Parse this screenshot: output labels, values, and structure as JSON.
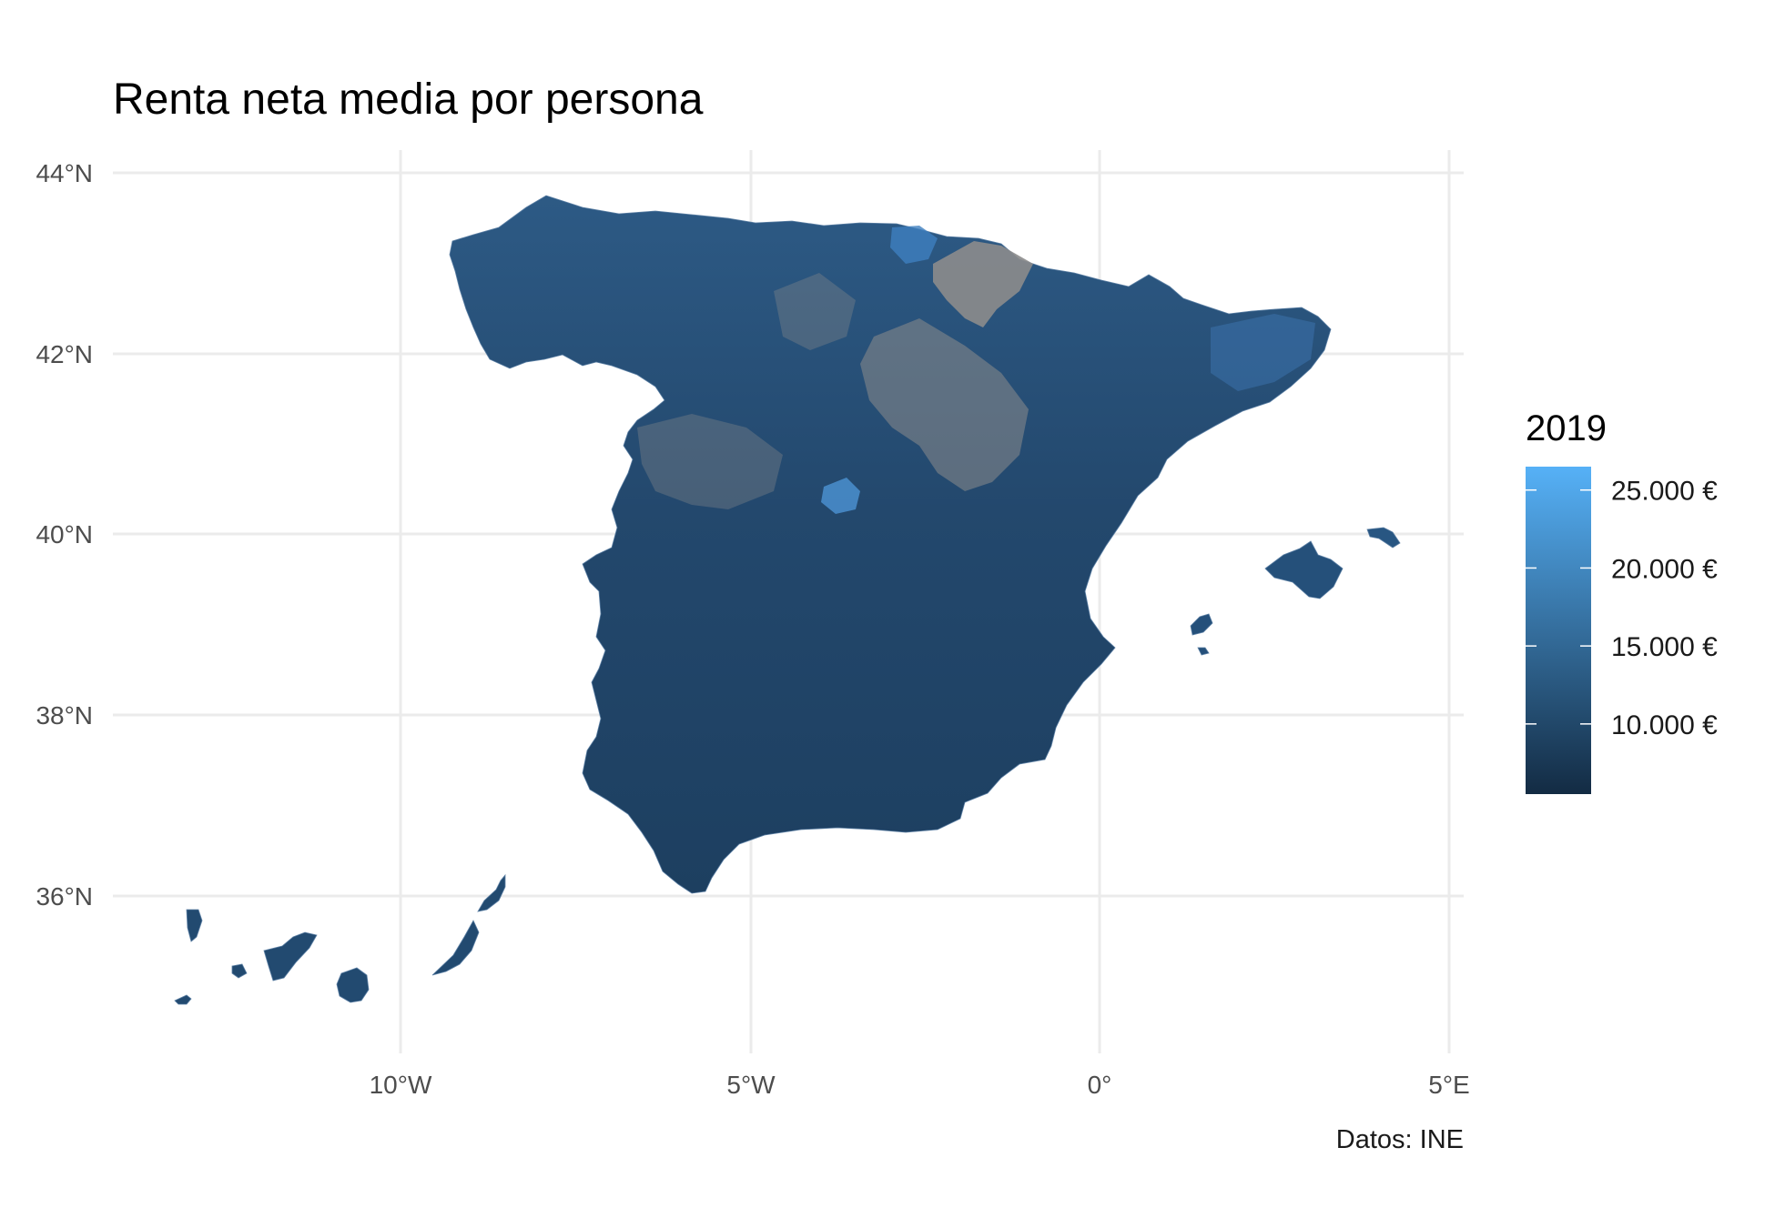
{
  "title": "Renta neta media por persona",
  "caption": "Datos: INE",
  "colors": {
    "low": "#132b43",
    "high": "#56b1f7",
    "missing": "#8c8c8c",
    "grid": "#ebebeb",
    "background": "#ffffff"
  },
  "axes": {
    "x_ticks": [
      "10°W",
      "5°W",
      "0°",
      "5°E"
    ],
    "y_ticks": [
      "44°N",
      "42°N",
      "40°N",
      "38°N",
      "36°N"
    ]
  },
  "legend": {
    "title": "2019",
    "labels": [
      "25.000 €",
      "20.000 €",
      "15.000 €",
      "10.000 €"
    ],
    "breaks": [
      25000,
      20000,
      15000,
      10000
    ],
    "range": [
      5500,
      26500
    ],
    "type": "continuous colorbar",
    "placement": "right"
  },
  "chart_data": {
    "type": "choropleth map",
    "title": "Renta neta media por persona",
    "region": "España (municipios)",
    "variable": "Renta neta media por persona",
    "year": "2019",
    "unit": "€",
    "x_ticks": [
      "10°W",
      "5°W",
      "0°",
      "5°E"
    ],
    "y_ticks": [
      "44°N",
      "42°N",
      "40°N",
      "38°N",
      "36°N"
    ],
    "fill_range": [
      5500,
      26500
    ],
    "legend_breaks": [
      10000,
      15000,
      20000,
      25000
    ],
    "missing_color": "#8c8c8c",
    "grid": true,
    "legend_placement": "right",
    "caption": "Datos: INE"
  }
}
